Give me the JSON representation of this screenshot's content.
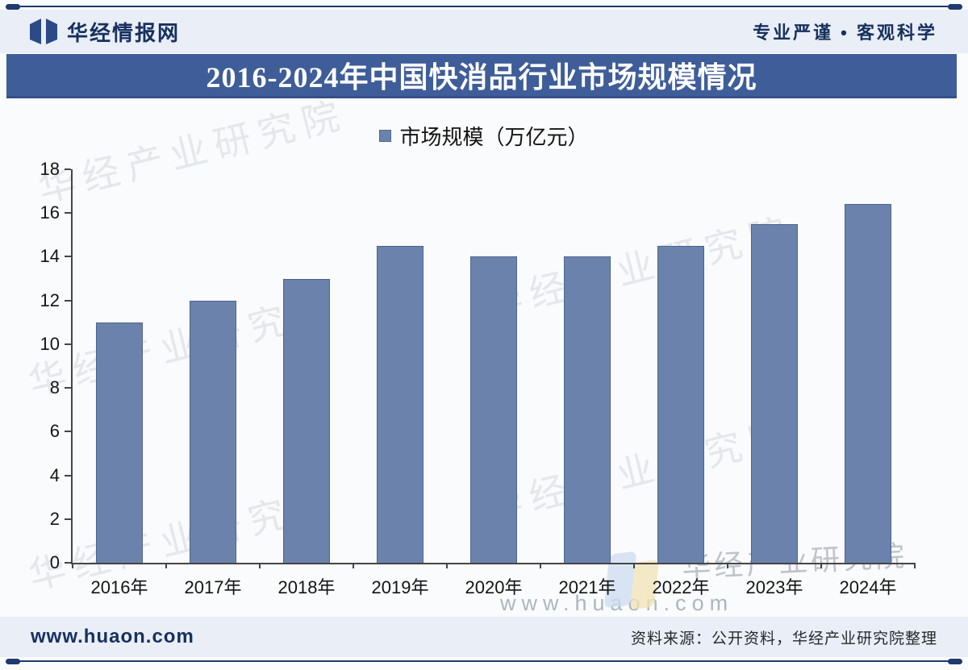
{
  "header": {
    "brand": "华经情报网",
    "slogan": "专业严谨 • 客观科学"
  },
  "title_bar": {
    "title": "2016-2024年中国快消品行业市场规模情况"
  },
  "chart_data": {
    "type": "bar",
    "title": "2016-2024年中国快消品行业市场规模情况",
    "legend": [
      "市场规模（万亿元）"
    ],
    "legend_position": "top-center",
    "categories": [
      "2016年",
      "2017年",
      "2018年",
      "2019年",
      "2020年",
      "2021年",
      "2022年",
      "2023年",
      "2024年"
    ],
    "values": [
      11,
      12,
      13,
      14.5,
      14,
      14,
      14.5,
      15.5,
      16.4
    ],
    "xlabel": "",
    "ylabel": "",
    "ylim": [
      0,
      18
    ],
    "yticks": [
      0,
      2,
      4,
      6,
      8,
      10,
      12,
      14,
      16,
      18
    ],
    "grid": false,
    "bar_color": "#6b82ac"
  },
  "watermark": {
    "brand_text": "华经产业研究院",
    "site_text": "www.huaon.com"
  },
  "footer": {
    "website": "www.huaon.com",
    "source": "资料来源：公开资料，华经产业研究院整理"
  },
  "colors": {
    "accent_navy": "#1e3a6e",
    "band_bg": "#e9eef7",
    "title_bg": "#3e5d99",
    "bar": "#6b82ac"
  }
}
